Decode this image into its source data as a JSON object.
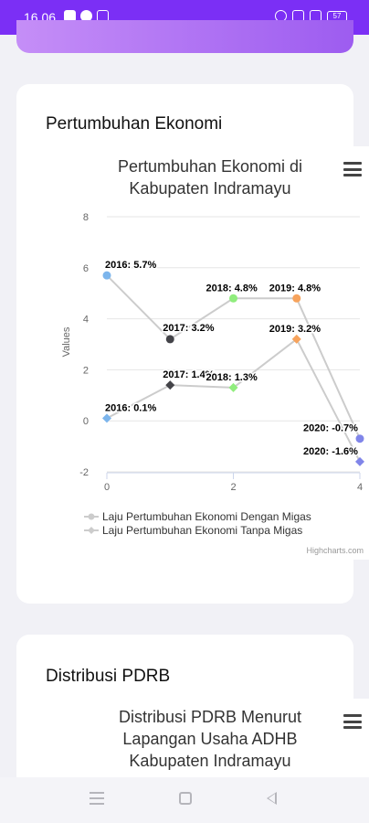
{
  "status_bar": {
    "time": "16.06",
    "left_icons": [
      "notification-app-icon",
      "browser-app-icon",
      "screen-icon"
    ],
    "right_icons": [
      "alarm-icon",
      "signal-icon",
      "wifi-signal-icon"
    ],
    "battery_label": "57"
  },
  "sections": [
    {
      "title": "Pertumbuhan Ekonomi",
      "menu_icon": "hamburger-menu-icon"
    },
    {
      "title": "Distribusi PDRB",
      "menu_icon": "hamburger-menu-icon"
    }
  ],
  "chart_data": [
    {
      "type": "line",
      "title": "Pertumbuhan Ekonomi di Kabupaten Indramayu",
      "title_lines": [
        "Pertumbuhan Ekonomi di",
        "Kabupaten Indramayu"
      ],
      "ylabel": "Values",
      "xlabel": "",
      "x_ticks": [
        "0",
        "2",
        "4"
      ],
      "y_ticks": [
        "-2",
        "0",
        "2",
        "4",
        "6",
        "8"
      ],
      "xlim": [
        0,
        4
      ],
      "ylim": [
        -2,
        8
      ],
      "grid": true,
      "legend_position": "bottom-left",
      "credit": "Highcharts.com",
      "series": [
        {
          "name": "Laju Pertumbuhan Ekonomi Dengan Migas",
          "x": [
            0,
            1,
            2,
            3,
            4
          ],
          "y": [
            5.7,
            3.2,
            4.8,
            4.8,
            -0.7
          ],
          "labels": [
            "2016: 5.7%",
            "2017: 3.2%",
            "2018: 4.8%",
            "2019: 4.8%",
            "2020: -0.7%"
          ],
          "point_colors": [
            "#7cb5ec",
            "#434348",
            "#90ed7d",
            "#f7a35c",
            "#8085e9"
          ]
        },
        {
          "name": "Laju Pertumbuhan Ekonomi Tanpa Migas",
          "x": [
            0,
            1,
            2,
            3,
            4
          ],
          "y": [
            0.1,
            1.4,
            1.3,
            3.2,
            -1.6
          ],
          "labels": [
            "2016: 0.1%",
            "2017: 1.4%",
            "2018: 1.3%",
            "2019: 3.2%",
            "2020: -1.6%"
          ],
          "point_colors": [
            "#7cb5ec",
            "#434348",
            "#90ed7d",
            "#f7a35c",
            "#8085e9"
          ]
        }
      ],
      "line_color": "#cccccc"
    },
    {
      "type": "other",
      "title": "Distribusi PDRB Menurut Lapangan Usaha ADHB Kabupaten Indramayu",
      "title_lines": [
        "Distribusi PDRB Menurut",
        "Lapangan Usaha ADHB",
        "Kabupaten Indramayu"
      ]
    }
  ]
}
